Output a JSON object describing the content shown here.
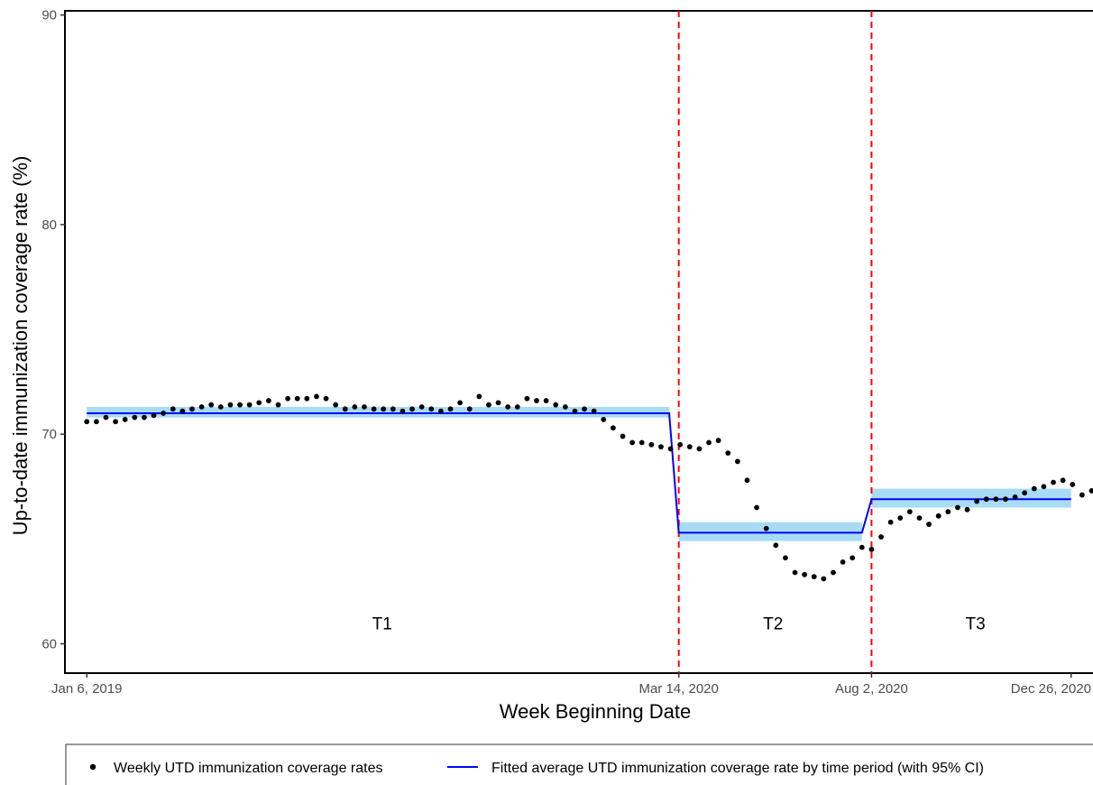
{
  "chart_data": {
    "type": "scatter",
    "title": "",
    "xlabel": "Week Beginning Date",
    "ylabel": "Up-to-date immunization coverage rate (%)",
    "ylim": [
      58.6,
      90.2
    ],
    "xlim": [
      "2018-12-21",
      "2021-01-11"
    ],
    "grid": false,
    "legend_position": "bottom",
    "x_ticks": [
      {
        "date": "2019-01-06",
        "label": "Jan 6, 2019"
      },
      {
        "date": "2020-03-14",
        "label": "Mar 14, 2020"
      },
      {
        "date": "2020-08-02",
        "label": "Aug 2, 2020"
      },
      {
        "date": "2020-12-26",
        "label": "Dec 26, 2020"
      }
    ],
    "y_ticks": [
      60,
      70,
      80,
      90
    ],
    "interruptions": [
      "2020-03-14",
      "2020-08-02"
    ],
    "periods": [
      {
        "label": "T1",
        "date": "2019-08-10",
        "y": 61
      },
      {
        "label": "T2",
        "date": "2020-05-22",
        "y": 61
      },
      {
        "label": "T3",
        "date": "2020-10-17",
        "y": 61
      }
    ],
    "series": [
      {
        "name": "Weekly UTD immunization coverage rates",
        "kind": "points",
        "color": "#000000",
        "start_date": "2019-01-06",
        "interval_days": 7,
        "values": [
          70.6,
          70.6,
          70.8,
          70.6,
          70.7,
          70.8,
          70.8,
          70.9,
          71.0,
          71.2,
          71.1,
          71.2,
          71.3,
          71.4,
          71.3,
          71.4,
          71.4,
          71.4,
          71.5,
          71.6,
          71.4,
          71.7,
          71.7,
          71.7,
          71.8,
          71.7,
          71.4,
          71.2,
          71.3,
          71.3,
          71.2,
          71.2,
          71.2,
          71.1,
          71.2,
          71.3,
          71.2,
          71.1,
          71.2,
          71.5,
          71.2,
          71.8,
          71.4,
          71.5,
          71.3,
          71.3,
          71.7,
          71.6,
          71.6,
          71.4,
          71.3,
          71.1,
          71.2,
          71.1,
          70.7,
          70.3,
          69.9,
          69.6,
          69.6,
          69.5,
          69.4,
          69.3,
          69.5,
          69.4,
          69.3,
          69.6,
          69.7,
          69.1,
          68.7,
          67.8,
          66.5,
          65.5,
          64.7,
          64.1,
          63.4,
          63.3,
          63.2,
          63.1,
          63.4,
          63.9,
          64.1,
          64.6,
          64.5,
          65.1,
          65.8,
          66.0,
          66.3,
          66.0,
          65.7,
          66.1,
          66.3,
          66.5,
          66.4,
          66.8,
          66.9,
          66.9,
          66.9,
          67.0,
          67.2,
          67.4,
          67.5,
          67.7,
          67.8,
          67.6,
          67.1,
          67.3,
          67.1,
          67.2,
          67.4,
          66.9
        ]
      },
      {
        "name": "Fitted average UTD immunization coverage rate by time period (with 95% CI)",
        "kind": "line",
        "color": "#0000ff",
        "ci_color": "#a8dcf5",
        "points": [
          [
            "2019-01-06",
            71.0
          ],
          [
            "2020-03-07",
            71.0
          ],
          [
            "2020-03-14",
            65.3
          ],
          [
            "2020-07-26",
            65.3
          ],
          [
            "2020-08-02",
            66.9
          ],
          [
            "2020-12-26",
            66.9
          ]
        ],
        "ci": [
          {
            "start": "2019-01-06",
            "end": "2020-03-07",
            "low": 70.8,
            "high": 71.3
          },
          {
            "start": "2020-03-14",
            "end": "2020-07-26",
            "low": 64.9,
            "high": 65.8
          },
          {
            "start": "2020-08-02",
            "end": "2020-12-26",
            "low": 66.5,
            "high": 67.4
          }
        ]
      }
    ]
  },
  "colors": {
    "interruption_line": "#ff0000",
    "axis": "#000000"
  }
}
